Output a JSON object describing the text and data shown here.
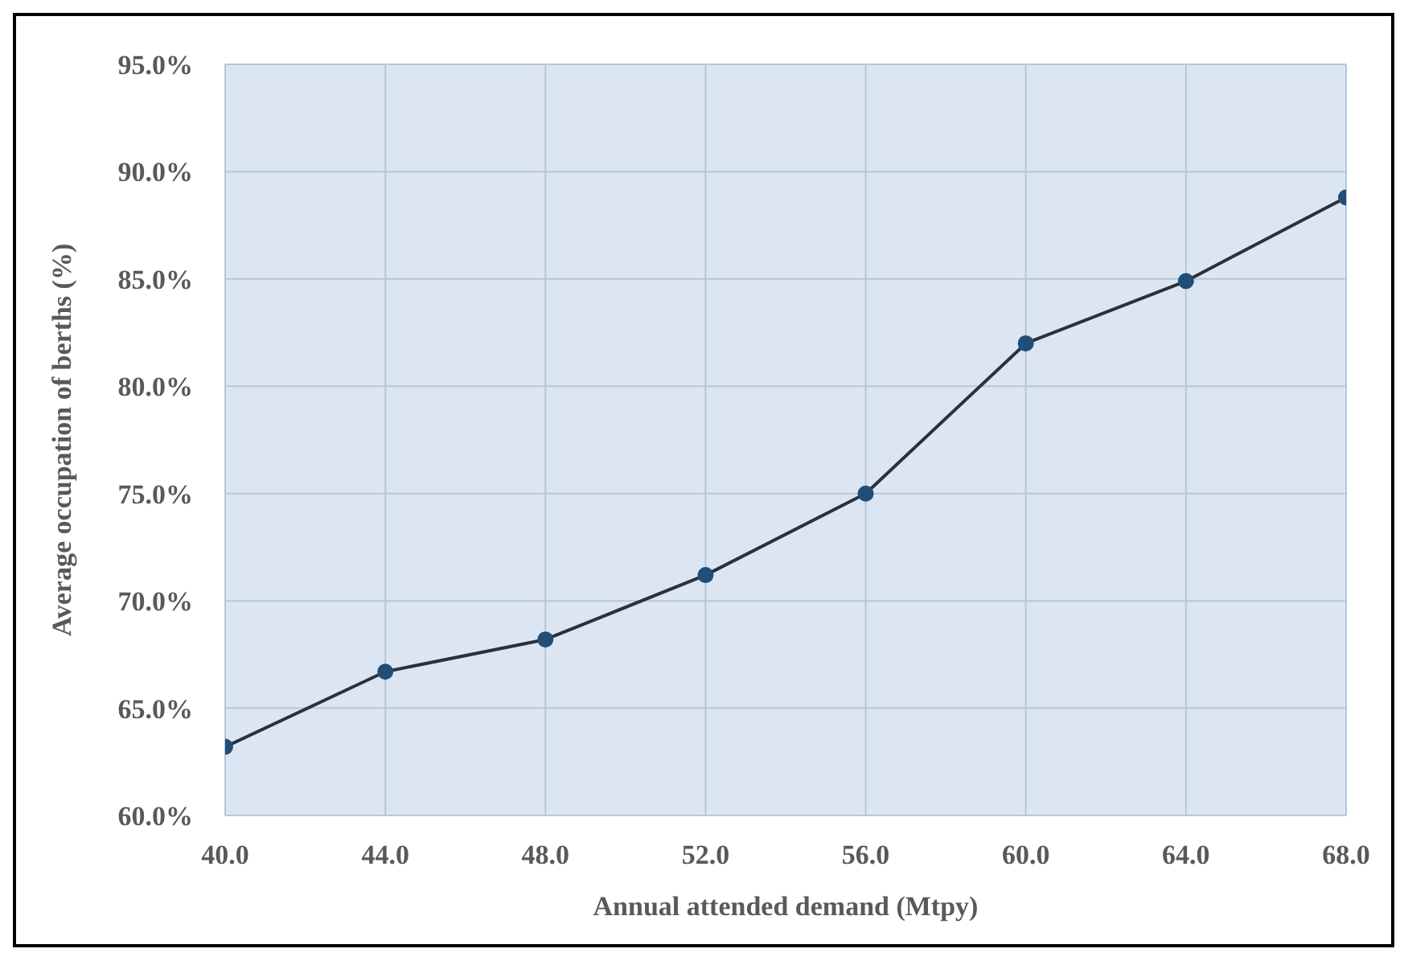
{
  "chart_data": {
    "type": "line",
    "xlabel": "Annual  attended demand  (Mtpy)",
    "ylabel": "Average occupation of berths  (%)",
    "x": [
      40,
      44,
      48,
      52,
      56,
      60,
      64,
      68
    ],
    "series": [
      {
        "color": "#1f4e79",
        "values": [
          63.2,
          66.7,
          68.2,
          71.2,
          75.0,
          82.0,
          84.9,
          88.8
        ]
      }
    ],
    "xlim": [
      40,
      68
    ],
    "xticks": [
      {
        "value": 40,
        "label": "40.0"
      },
      {
        "value": 44,
        "label": "44.0"
      },
      {
        "value": 48,
        "label": "48.0"
      },
      {
        "value": 52,
        "label": "52.0"
      },
      {
        "value": 56,
        "label": "56.0"
      },
      {
        "value": 60,
        "label": "60.0"
      },
      {
        "value": 64,
        "label": "64.0"
      },
      {
        "value": 68,
        "label": "68.0"
      }
    ],
    "ylim": [
      60,
      95
    ],
    "yticks": [
      {
        "value": 60,
        "label": "60.0%"
      },
      {
        "value": 65,
        "label": "65.0%"
      },
      {
        "value": 70,
        "label": "70.0%"
      },
      {
        "value": 75,
        "label": "75.0%"
      },
      {
        "value": 80,
        "label": "80.0%"
      },
      {
        "value": 85,
        "label": "85.0%"
      },
      {
        "value": 90,
        "label": "90.0%"
      },
      {
        "value": 95,
        "label": "95.0%"
      }
    ],
    "grid": true,
    "marker": "circle",
    "line_style": "solid",
    "legend": false
  }
}
